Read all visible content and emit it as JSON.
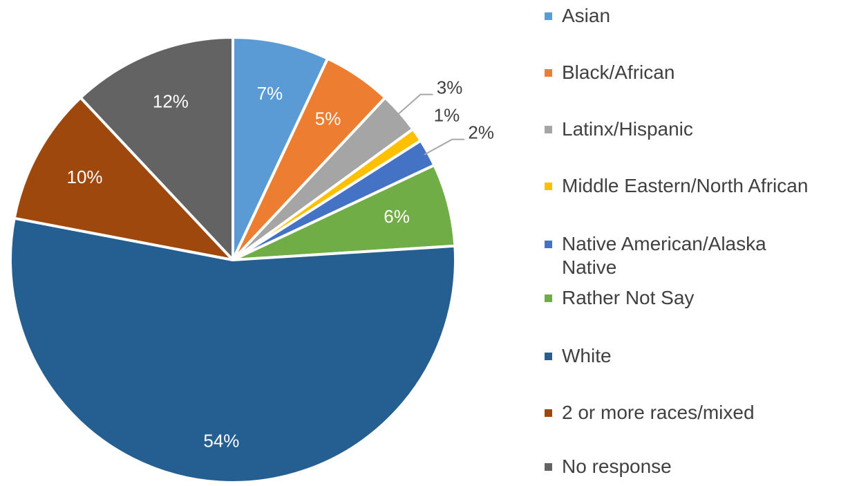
{
  "chart_data": {
    "type": "pie",
    "title": "",
    "slices": [
      {
        "label": "Asian",
        "value": 7,
        "display": "7%",
        "color": "#5B9BD5"
      },
      {
        "label": "Black/African",
        "value": 5,
        "display": "5%",
        "color": "#ED7D31"
      },
      {
        "label": "Latinx/Hispanic",
        "value": 3,
        "display": "3%",
        "color": "#A5A5A5"
      },
      {
        "label": "Middle Eastern/North African",
        "value": 1,
        "display": "1%",
        "color": "#FFC000"
      },
      {
        "label": "Native American/Alaska Native",
        "value": 2,
        "display": "2%",
        "color": "#4472C4"
      },
      {
        "label": "Rather Not Say",
        "value": 6,
        "display": "6%",
        "color": "#70AD47"
      },
      {
        "label": "White",
        "value": 54,
        "display": "54%",
        "color": "#255E91"
      },
      {
        "label": "2 or more races/mixed",
        "value": 10,
        "display": "10%",
        "color": "#9E480E"
      },
      {
        "label": "No response",
        "value": 12,
        "display": "12%",
        "color": "#636363"
      }
    ],
    "legend_position": "right",
    "start_angle": "12 o'clock, clockwise",
    "data_labels": "inside for large slices, outside with leader lines for small slices"
  }
}
